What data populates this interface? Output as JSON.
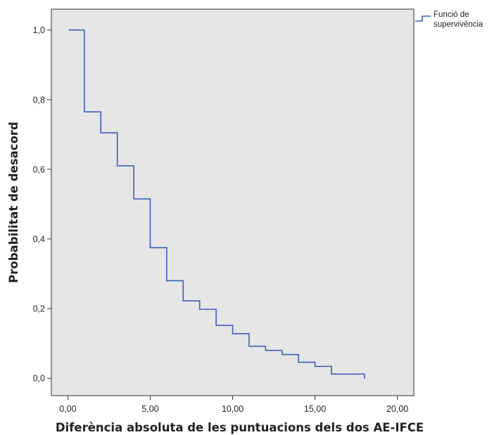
{
  "chart_data": {
    "type": "line",
    "step": true,
    "xlabel": "Diferència absoluta de les puntuacions dels dos AE-IFCE",
    "ylabel": "Probabilitat de desacord",
    "xlim": [
      -1,
      21
    ],
    "ylim": [
      -0.05,
      1.06
    ],
    "x_ticks": [
      {
        "value": 0,
        "label": "0,00"
      },
      {
        "value": 5,
        "label": "5,00"
      },
      {
        "value": 10,
        "label": "10,00"
      },
      {
        "value": 15,
        "label": "15,00"
      },
      {
        "value": 20,
        "label": "20,00"
      }
    ],
    "y_ticks": [
      {
        "value": 0,
        "label": "0,0"
      },
      {
        "value": 0.2,
        "label": "0,2"
      },
      {
        "value": 0.4,
        "label": "0,4"
      },
      {
        "value": 0.6,
        "label": "0,6"
      },
      {
        "value": 0.8,
        "label": "0,8"
      },
      {
        "value": 1.0,
        "label": "1,0"
      }
    ],
    "grid": false,
    "plot_background": "#e6e6e6",
    "legend_position": "right-top",
    "series": [
      {
        "name": "Funció de supervivència",
        "color": "#3d5fb8",
        "x": [
          0,
          1,
          2,
          3,
          4,
          5,
          6,
          7,
          8,
          9,
          10,
          11,
          12,
          13,
          14,
          15,
          16,
          18
        ],
        "y": [
          1.0,
          0.765,
          0.705,
          0.61,
          0.515,
          0.375,
          0.28,
          0.222,
          0.198,
          0.152,
          0.128,
          0.092,
          0.08,
          0.068,
          0.046,
          0.034,
          0.012,
          0.004
        ]
      }
    ]
  },
  "legend": {
    "line1": "Funció de",
    "line2": "supervivència"
  }
}
